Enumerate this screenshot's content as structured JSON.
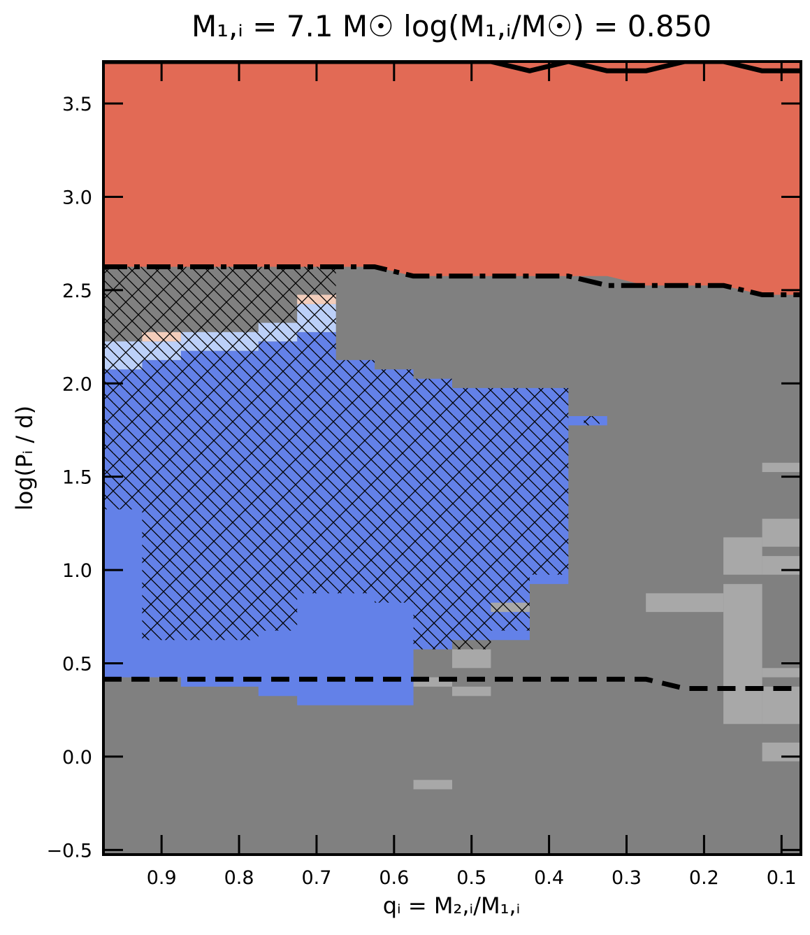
{
  "chart_data": {
    "type": "heatmap",
    "title": "M₁,ᵢ = 7.1 M☉    log(M₁,ᵢ/M☉) = 0.850",
    "xlabel": "qᵢ = M₂,ᵢ/M₁,ᵢ",
    "ylabel": "log(Pᵢ / d)",
    "xlim": [
      0.975,
      0.075
    ],
    "ylim": [
      -0.525,
      3.725
    ],
    "x_ticks": [
      {
        "value": 0.9,
        "label": "0.9"
      },
      {
        "value": 0.8,
        "label": "0.8"
      },
      {
        "value": 0.7,
        "label": "0.7"
      },
      {
        "value": 0.6,
        "label": "0.6"
      },
      {
        "value": 0.5,
        "label": "0.5"
      },
      {
        "value": 0.4,
        "label": "0.4"
      },
      {
        "value": 0.3,
        "label": "0.3"
      },
      {
        "value": 0.2,
        "label": "0.2"
      },
      {
        "value": 0.1,
        "label": "0.1"
      }
    ],
    "y_ticks": [
      {
        "value": -0.5,
        "label": "−0.5"
      },
      {
        "value": 0.0,
        "label": "0.0"
      },
      {
        "value": 0.5,
        "label": "0.5"
      },
      {
        "value": 1.0,
        "label": "1.0"
      },
      {
        "value": 1.5,
        "label": "1.5"
      },
      {
        "value": 2.0,
        "label": "2.0"
      },
      {
        "value": 2.5,
        "label": "2.5"
      },
      {
        "value": 3.0,
        "label": "3.0"
      },
      {
        "value": 3.5,
        "label": "3.5"
      }
    ],
    "colors": {
      "background_gray": "#808080",
      "light_gray": "#a8a8a8",
      "red": "#e26a55",
      "blue": "#6381e8",
      "light_blue": "#bcd0f8",
      "peach": "#f3cdbb"
    },
    "regions": [
      {
        "color": "red",
        "polygon": [
          [
            0.975,
            3.725
          ],
          [
            0.075,
            3.725
          ],
          [
            0.075,
            2.475
          ],
          [
            0.125,
            2.475
          ],
          [
            0.175,
            2.525
          ],
          [
            0.275,
            2.525
          ],
          [
            0.325,
            2.575
          ],
          [
            0.575,
            2.575
          ],
          [
            0.625,
            2.625
          ],
          [
            0.975,
            2.625
          ]
        ]
      },
      {
        "color": "blue",
        "polygon": [
          [
            0.975,
            2.075
          ],
          [
            0.925,
            2.075
          ],
          [
            0.925,
            2.125
          ],
          [
            0.875,
            2.125
          ],
          [
            0.875,
            2.175
          ],
          [
            0.775,
            2.175
          ],
          [
            0.775,
            2.225
          ],
          [
            0.725,
            2.225
          ],
          [
            0.725,
            2.275
          ],
          [
            0.675,
            2.275
          ],
          [
            0.675,
            2.125
          ],
          [
            0.625,
            2.125
          ],
          [
            0.625,
            2.075
          ],
          [
            0.575,
            2.075
          ],
          [
            0.575,
            2.025
          ],
          [
            0.525,
            2.025
          ],
          [
            0.525,
            1.975
          ],
          [
            0.375,
            1.975
          ],
          [
            0.375,
            0.925
          ],
          [
            0.425,
            0.925
          ],
          [
            0.425,
            0.625
          ],
          [
            0.525,
            0.625
          ],
          [
            0.525,
            0.575
          ],
          [
            0.575,
            0.575
          ],
          [
            0.575,
            0.275
          ],
          [
            0.725,
            0.275
          ],
          [
            0.725,
            0.325
          ],
          [
            0.775,
            0.325
          ],
          [
            0.775,
            0.375
          ],
          [
            0.875,
            0.375
          ],
          [
            0.875,
            0.425
          ],
          [
            0.975,
            0.425
          ]
        ]
      },
      {
        "color": "blue",
        "polygon": [
          [
            0.375,
            1.825
          ],
          [
            0.325,
            1.825
          ],
          [
            0.325,
            1.775
          ],
          [
            0.375,
            1.775
          ]
        ]
      },
      {
        "color": "light_blue",
        "polygon": [
          [
            0.975,
            2.225
          ],
          [
            0.875,
            2.225
          ],
          [
            0.875,
            2.275
          ],
          [
            0.775,
            2.275
          ],
          [
            0.775,
            2.325
          ],
          [
            0.725,
            2.325
          ],
          [
            0.725,
            2.425
          ],
          [
            0.675,
            2.425
          ],
          [
            0.675,
            2.275
          ],
          [
            0.725,
            2.275
          ],
          [
            0.725,
            2.225
          ],
          [
            0.775,
            2.225
          ],
          [
            0.775,
            2.175
          ],
          [
            0.875,
            2.175
          ],
          [
            0.875,
            2.125
          ],
          [
            0.925,
            2.125
          ],
          [
            0.925,
            2.075
          ],
          [
            0.975,
            2.075
          ]
        ]
      },
      {
        "color": "peach",
        "polygon": [
          [
            0.925,
            2.275
          ],
          [
            0.875,
            2.275
          ],
          [
            0.875,
            2.225
          ],
          [
            0.925,
            2.225
          ]
        ]
      },
      {
        "color": "peach",
        "polygon": [
          [
            0.725,
            2.475
          ],
          [
            0.675,
            2.475
          ],
          [
            0.675,
            2.425
          ],
          [
            0.725,
            2.425
          ]
        ]
      },
      {
        "color": "light_gray",
        "polygon": [
          [
            0.575,
            0.425
          ],
          [
            0.525,
            0.425
          ],
          [
            0.525,
            0.375
          ],
          [
            0.575,
            0.375
          ]
        ]
      },
      {
        "color": "light_gray",
        "polygon": [
          [
            0.525,
            0.575
          ],
          [
            0.475,
            0.575
          ],
          [
            0.475,
            0.475
          ],
          [
            0.525,
            0.475
          ]
        ]
      },
      {
        "color": "light_gray",
        "polygon": [
          [
            0.525,
            0.375
          ],
          [
            0.475,
            0.375
          ],
          [
            0.475,
            0.325
          ],
          [
            0.525,
            0.325
          ]
        ]
      },
      {
        "color": "light_gray",
        "polygon": [
          [
            0.475,
            0.825
          ],
          [
            0.425,
            0.825
          ],
          [
            0.425,
            0.775
          ],
          [
            0.475,
            0.775
          ]
        ]
      },
      {
        "color": "light_gray",
        "polygon": [
          [
            0.575,
            -0.125
          ],
          [
            0.525,
            -0.125
          ],
          [
            0.525,
            -0.175
          ],
          [
            0.575,
            -0.175
          ]
        ]
      },
      {
        "color": "light_gray",
        "polygon": [
          [
            0.275,
            0.875
          ],
          [
            0.175,
            0.875
          ],
          [
            0.175,
            0.775
          ],
          [
            0.275,
            0.775
          ]
        ]
      },
      {
        "color": "light_gray",
        "polygon": [
          [
            0.175,
            1.175
          ],
          [
            0.125,
            1.175
          ],
          [
            0.125,
            0.975
          ],
          [
            0.175,
            0.975
          ]
        ]
      },
      {
        "color": "light_gray",
        "polygon": [
          [
            0.175,
            0.925
          ],
          [
            0.125,
            0.925
          ],
          [
            0.125,
            0.175
          ],
          [
            0.175,
            0.175
          ]
        ]
      },
      {
        "color": "light_gray",
        "polygon": [
          [
            0.125,
            1.575
          ],
          [
            0.075,
            1.575
          ],
          [
            0.075,
            1.525
          ],
          [
            0.125,
            1.525
          ]
        ]
      },
      {
        "color": "light_gray",
        "polygon": [
          [
            0.125,
            1.275
          ],
          [
            0.075,
            1.275
          ],
          [
            0.075,
            1.125
          ],
          [
            0.125,
            1.125
          ]
        ]
      },
      {
        "color": "light_gray",
        "polygon": [
          [
            0.125,
            1.075
          ],
          [
            0.075,
            1.075
          ],
          [
            0.075,
            0.975
          ],
          [
            0.125,
            0.975
          ]
        ]
      },
      {
        "color": "light_gray",
        "polygon": [
          [
            0.125,
            0.475
          ],
          [
            0.075,
            0.475
          ],
          [
            0.075,
            0.425
          ],
          [
            0.125,
            0.425
          ]
        ]
      },
      {
        "color": "light_gray",
        "polygon": [
          [
            0.125,
            0.375
          ],
          [
            0.075,
            0.375
          ],
          [
            0.075,
            0.175
          ],
          [
            0.125,
            0.175
          ]
        ]
      },
      {
        "color": "light_gray",
        "polygon": [
          [
            0.125,
            0.075
          ],
          [
            0.075,
            0.075
          ],
          [
            0.075,
            -0.025
          ],
          [
            0.125,
            -0.025
          ]
        ]
      }
    ],
    "hatched_regions": [
      {
        "polygon": [
          [
            0.975,
            2.625
          ],
          [
            0.675,
            2.625
          ],
          [
            0.675,
            2.275
          ],
          [
            0.725,
            2.275
          ],
          [
            0.725,
            2.225
          ],
          [
            0.775,
            2.225
          ],
          [
            0.775,
            2.175
          ],
          [
            0.875,
            2.175
          ],
          [
            0.875,
            2.125
          ],
          [
            0.925,
            2.125
          ],
          [
            0.925,
            2.075
          ],
          [
            0.975,
            2.075
          ]
        ]
      },
      {
        "polygon": [
          [
            0.975,
            2.075
          ],
          [
            0.925,
            2.075
          ],
          [
            0.925,
            2.125
          ],
          [
            0.875,
            2.125
          ],
          [
            0.875,
            2.175
          ],
          [
            0.775,
            2.175
          ],
          [
            0.775,
            2.225
          ],
          [
            0.725,
            2.225
          ],
          [
            0.725,
            2.275
          ],
          [
            0.675,
            2.275
          ],
          [
            0.675,
            2.125
          ],
          [
            0.625,
            2.125
          ],
          [
            0.625,
            2.075
          ],
          [
            0.575,
            2.075
          ],
          [
            0.575,
            2.025
          ],
          [
            0.525,
            2.025
          ],
          [
            0.525,
            1.975
          ],
          [
            0.375,
            1.975
          ],
          [
            0.375,
            0.975
          ],
          [
            0.425,
            0.975
          ],
          [
            0.425,
            0.675
          ],
          [
            0.475,
            0.675
          ],
          [
            0.475,
            0.575
          ],
          [
            0.575,
            0.575
          ],
          [
            0.575,
            0.825
          ],
          [
            0.625,
            0.825
          ],
          [
            0.625,
            0.875
          ],
          [
            0.725,
            0.875
          ],
          [
            0.725,
            0.675
          ],
          [
            0.775,
            0.675
          ],
          [
            0.775,
            0.625
          ],
          [
            0.875,
            0.625
          ],
          [
            0.875,
            0.625
          ],
          [
            0.925,
            0.625
          ],
          [
            0.925,
            1.325
          ],
          [
            0.975,
            1.325
          ]
        ]
      },
      {
        "polygon": [
          [
            0.355,
            1.825
          ],
          [
            0.335,
            1.825
          ],
          [
            0.335,
            1.775
          ],
          [
            0.355,
            1.775
          ]
        ]
      }
    ],
    "lines": [
      {
        "style": "solid",
        "x": [
          0.975,
          0.475,
          0.425,
          0.375,
          0.325,
          0.275,
          0.225,
          0.175,
          0.125,
          0.075
        ],
        "y": [
          3.725,
          3.725,
          3.675,
          3.725,
          3.675,
          3.675,
          3.725,
          3.725,
          3.675,
          3.675
        ]
      },
      {
        "style": "dashdot",
        "x": [
          0.975,
          0.625,
          0.575,
          0.525,
          0.375,
          0.325,
          0.275,
          0.175,
          0.125,
          0.075
        ],
        "y": [
          2.625,
          2.625,
          2.575,
          2.575,
          2.575,
          2.525,
          2.525,
          2.525,
          2.475,
          2.475
        ]
      },
      {
        "style": "dashed",
        "x": [
          0.975,
          0.275,
          0.225,
          0.075
        ],
        "y": [
          0.415,
          0.415,
          0.365,
          0.365
        ]
      }
    ]
  }
}
